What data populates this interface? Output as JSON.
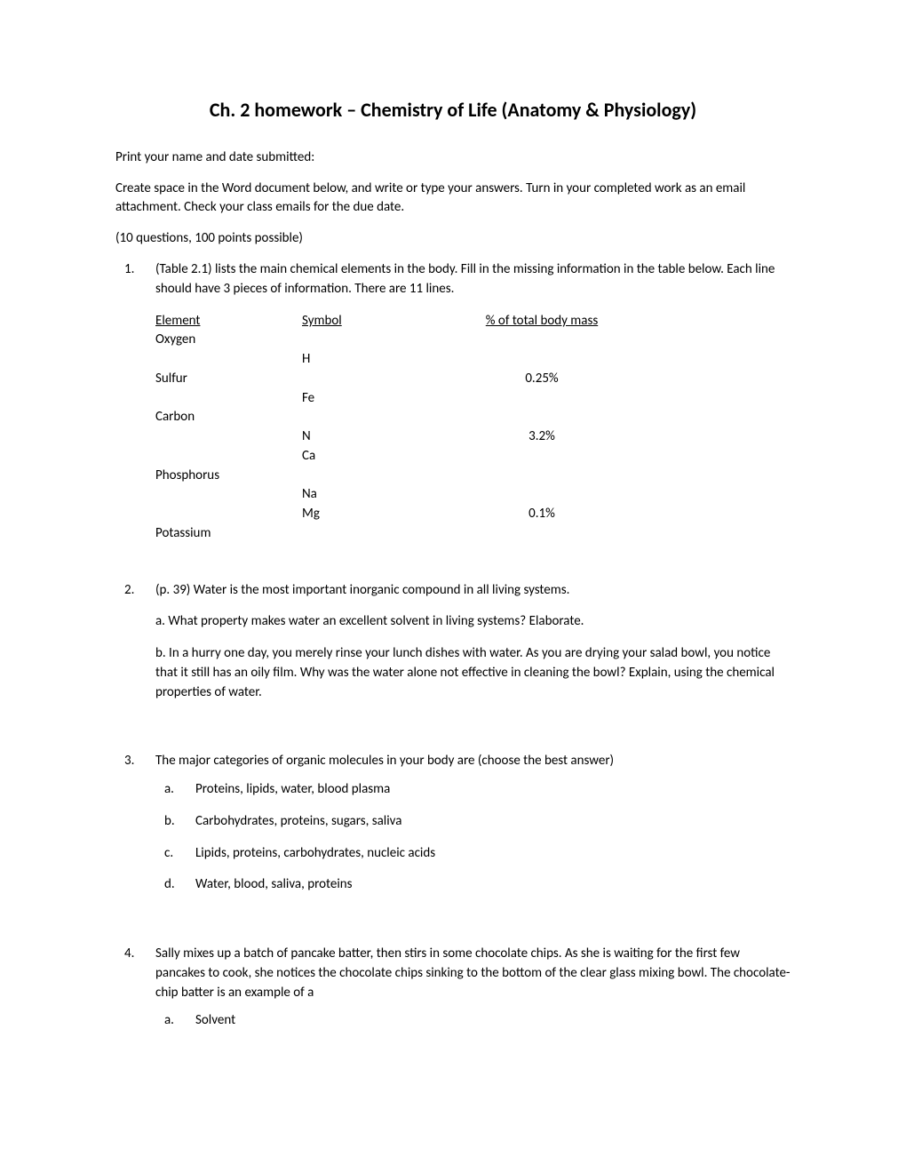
{
  "title": "Ch. 2 homework – Chemistry of Life (Anatomy & Physiology)",
  "intro1": "Print your name and date submitted:",
  "intro2": "Create space in the Word document below, and write or type your answers. Turn in your completed work as an email attachment. Check your class emails for the due date.",
  "intro3": " (10 questions, 100 points possible)",
  "q1": {
    "num": "1.",
    "text": "(Table 2.1) lists the main chemical elements in the body. Fill in the missing information in the table below. Each line should have 3 pieces of information. There are 11 lines.",
    "headers": {
      "element": "Element",
      "symbol": "Symbol",
      "pct": "% of total body mass"
    },
    "rows": [
      {
        "element": "Oxygen",
        "symbol": "",
        "pct": ""
      },
      {
        "element": "",
        "symbol": "H",
        "pct": ""
      },
      {
        "element": "Sulfur",
        "symbol": "",
        "pct": "0.25%"
      },
      {
        "element": "",
        "symbol": "Fe",
        "pct": ""
      },
      {
        "element": "Carbon",
        "symbol": "",
        "pct": ""
      },
      {
        "element": "",
        "symbol": "N",
        "pct": "3.2%"
      },
      {
        "element": "",
        "symbol": "Ca",
        "pct": ""
      },
      {
        "element": "Phosphorus",
        "symbol": "",
        "pct": ""
      },
      {
        "element": "",
        "symbol": "Na",
        "pct": ""
      },
      {
        "element": "",
        "symbol": "Mg",
        "pct": "0.1%"
      },
      {
        "element": "Potassium",
        "symbol": "",
        "pct": ""
      }
    ]
  },
  "q2": {
    "num": "2.",
    "text": "(p. 39) Water is the most important inorganic compound in all living systems.",
    "a": "a. What property makes water an excellent solvent in living systems? Elaborate.",
    "b": "b. In a hurry one day, you merely rinse your lunch dishes with water. As you are drying your salad bowl, you notice that it still has an oily film. Why was the water alone not effective in cleaning the bowl? Explain, using the chemical properties of water."
  },
  "q3": {
    "num": "3.",
    "text": "The major categories of organic molecules in your body are (choose the best answer)",
    "options": [
      {
        "letter": "a.",
        "text": "Proteins, lipids, water, blood plasma"
      },
      {
        "letter": "b.",
        "text": "Carbohydrates, proteins, sugars, saliva"
      },
      {
        "letter": "c.",
        "text": "Lipids, proteins, carbohydrates, nucleic acids"
      },
      {
        "letter": "d.",
        "text": "Water, blood, saliva, proteins"
      }
    ]
  },
  "q4": {
    "num": "4.",
    "text": "Sally mixes up a batch of pancake batter, then stirs in some chocolate chips. As she is waiting for the first few pancakes to cook, she notices the chocolate chips sinking to the bottom of the clear glass mixing bowl. The chocolate-chip batter is an example of a",
    "options": [
      {
        "letter": "a.",
        "text": "Solvent"
      }
    ]
  },
  "colors": {
    "text": "#000000",
    "background": "#ffffff"
  },
  "typography": {
    "body_fontsize": 15,
    "title_fontsize": 22,
    "font_family": "Calibri"
  }
}
